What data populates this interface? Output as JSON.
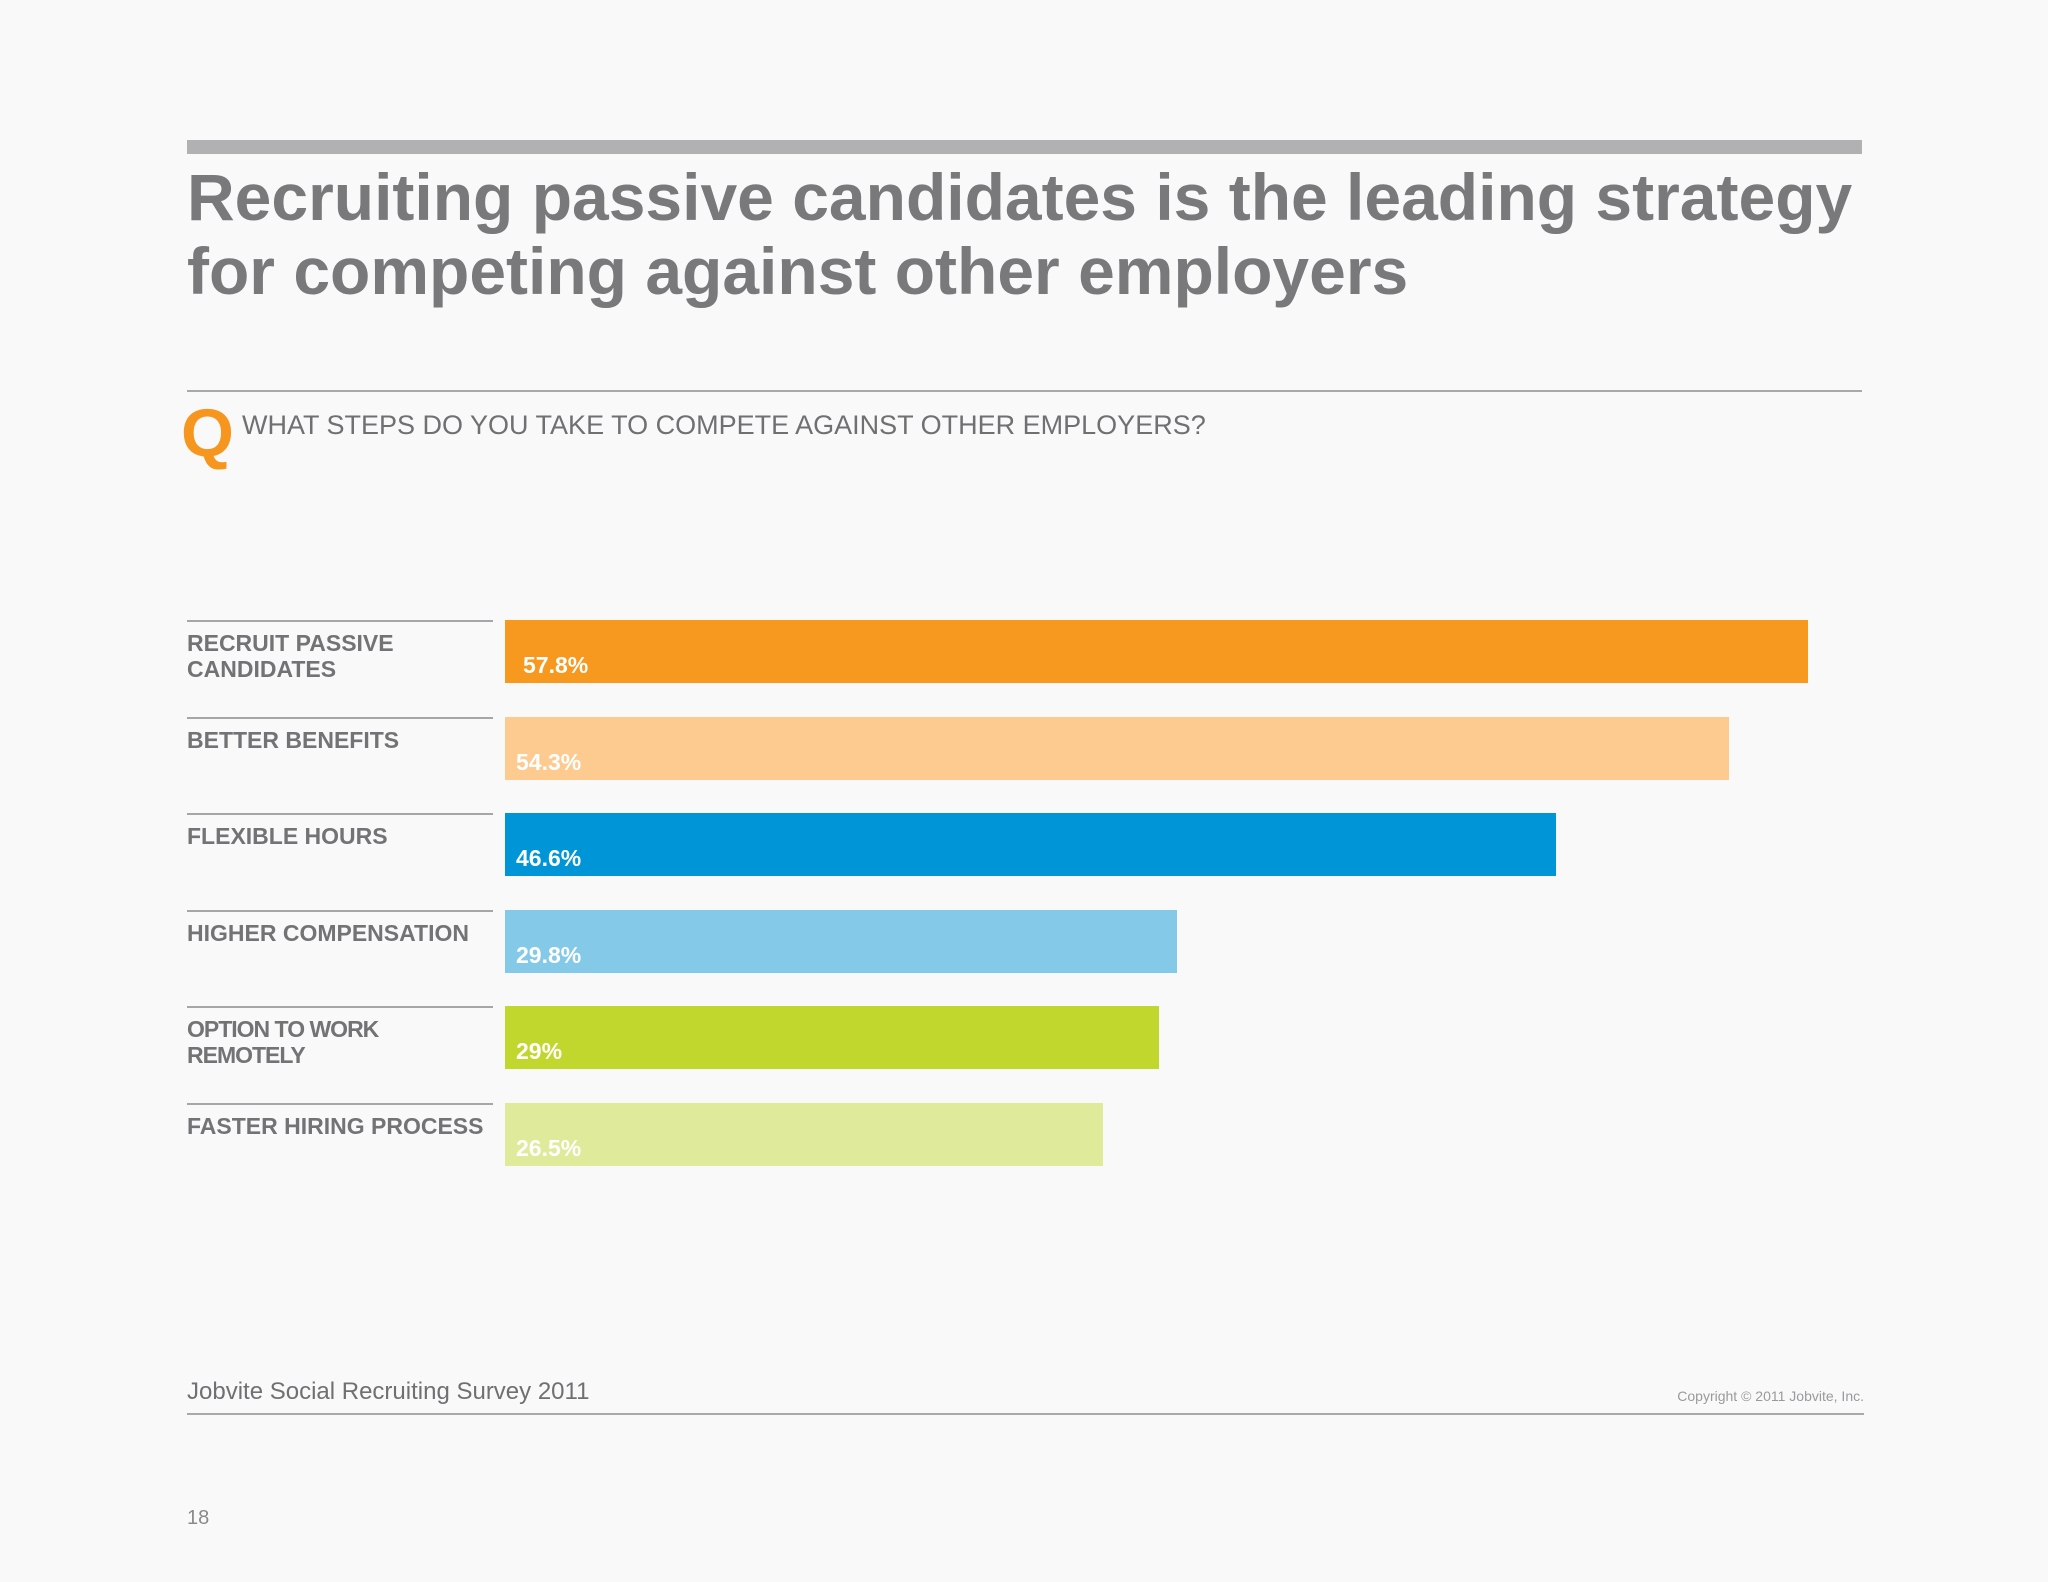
{
  "title": "Recruiting passive candidates is the leading strategy for competing against other employers",
  "question": {
    "marker": "Q",
    "text": "WHAT STEPS DO YOU TAKE TO COMPETE AGAINST OTHER EMPLOYERS?"
  },
  "chart_data": {
    "type": "bar",
    "orientation": "horizontal",
    "categories": [
      "RECRUIT PASSIVE CANDIDATES",
      "BETTER BENEFITS",
      "FLEXIBLE HOURS",
      "HIGHER COMPENSATION",
      "OPTION TO WORK REMOTELY",
      "FASTER HIRING PROCESS"
    ],
    "values": [
      57.8,
      54.3,
      46.6,
      29.8,
      29,
      26.5
    ],
    "value_labels": [
      "57.8%",
      "54.3%",
      "46.6%",
      "29.8%",
      "29%",
      "26.5%"
    ],
    "colors": [
      "#f7981f",
      "#fdcb90",
      "#0095d6",
      "#84c9e8",
      "#c2d72e",
      "#dfeb9a"
    ],
    "unit": "%",
    "xlim": [
      0,
      60
    ],
    "title": "",
    "xlabel": "",
    "ylabel": "",
    "grid": false,
    "legend": false
  },
  "footer": {
    "source": "Jobvite Social Recruiting Survey 2011",
    "copyright": "Copyright © 2011 Jobvite, Inc.",
    "page_number": "18"
  }
}
